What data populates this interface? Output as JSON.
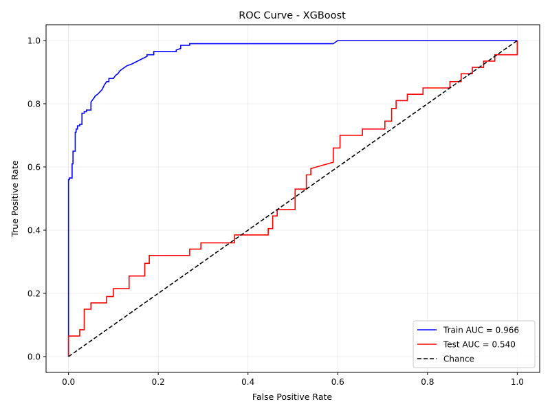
{
  "chart_data": {
    "type": "line",
    "title": "ROC Curve - XGBoost",
    "xlabel": "False Positive Rate",
    "ylabel": "True Positive Rate",
    "xlim": [
      -0.05,
      1.05
    ],
    "ylim": [
      -0.05,
      1.05
    ],
    "xticks": [
      0.0,
      0.2,
      0.4,
      0.6,
      0.8,
      1.0
    ],
    "xtick_labels": [
      "0.0",
      "0.2",
      "0.4",
      "0.6",
      "0.8",
      "1.0"
    ],
    "yticks": [
      0.0,
      0.2,
      0.4,
      0.6,
      0.8,
      1.0
    ],
    "ytick_labels": [
      "0.0",
      "0.2",
      "0.4",
      "0.6",
      "0.8",
      "1.0"
    ],
    "grid": true,
    "legend_position": "lower-right",
    "series": [
      {
        "name": "Train AUC = 0.966",
        "color": "#0000ff",
        "style": "solid",
        "x": [
          0,
          0,
          0.002,
          0.002,
          0.008,
          0.008,
          0.01,
          0.01,
          0.015,
          0.015,
          0.017,
          0.017,
          0.02,
          0.02,
          0.025,
          0.025,
          0.03,
          0.03,
          0.035,
          0.035,
          0.04,
          0.04,
          0.05,
          0.05,
          0.055,
          0.06,
          0.065,
          0.075,
          0.08,
          0.085,
          0.09,
          0.09,
          0.1,
          0.105,
          0.11,
          0.115,
          0.12,
          0.125,
          0.13,
          0.14,
          0.175,
          0.175,
          0.19,
          0.19,
          0.24,
          0.24,
          0.25,
          0.25,
          0.27,
          0.27,
          0.59,
          0.6,
          1.0
        ],
        "y": [
          0,
          0.56,
          0.56,
          0.565,
          0.565,
          0.61,
          0.61,
          0.65,
          0.65,
          0.71,
          0.71,
          0.72,
          0.72,
          0.73,
          0.73,
          0.735,
          0.735,
          0.77,
          0.77,
          0.775,
          0.775,
          0.78,
          0.78,
          0.805,
          0.815,
          0.825,
          0.83,
          0.845,
          0.86,
          0.87,
          0.87,
          0.88,
          0.88,
          0.89,
          0.895,
          0.905,
          0.91,
          0.915,
          0.92,
          0.925,
          0.95,
          0.955,
          0.955,
          0.965,
          0.965,
          0.97,
          0.975,
          0.985,
          0.985,
          0.99,
          0.99,
          1.0,
          1.0
        ]
      },
      {
        "name": "Test AUC = 0.540",
        "color": "#ff0000",
        "style": "solid",
        "x": [
          0,
          0,
          0.025,
          0.025,
          0.035,
          0.035,
          0.05,
          0.05,
          0.085,
          0.085,
          0.1,
          0.1,
          0.135,
          0.135,
          0.17,
          0.17,
          0.18,
          0.18,
          0.27,
          0.27,
          0.295,
          0.295,
          0.37,
          0.37,
          0.445,
          0.445,
          0.455,
          0.455,
          0.465,
          0.465,
          0.505,
          0.505,
          0.53,
          0.53,
          0.54,
          0.54,
          0.59,
          0.59,
          0.605,
          0.605,
          0.655,
          0.655,
          0.705,
          0.705,
          0.72,
          0.72,
          0.73,
          0.73,
          0.755,
          0.755,
          0.79,
          0.79,
          0.85,
          0.85,
          0.875,
          0.875,
          0.9,
          0.9,
          0.925,
          0.925,
          0.95,
          0.95,
          1.0,
          1.0
        ],
        "y": [
          0,
          0.065,
          0.065,
          0.085,
          0.085,
          0.15,
          0.15,
          0.17,
          0.17,
          0.19,
          0.19,
          0.215,
          0.215,
          0.255,
          0.255,
          0.295,
          0.295,
          0.32,
          0.32,
          0.34,
          0.34,
          0.36,
          0.36,
          0.385,
          0.385,
          0.405,
          0.405,
          0.445,
          0.445,
          0.465,
          0.465,
          0.53,
          0.53,
          0.575,
          0.575,
          0.595,
          0.615,
          0.66,
          0.66,
          0.7,
          0.7,
          0.72,
          0.72,
          0.745,
          0.745,
          0.785,
          0.785,
          0.81,
          0.81,
          0.83,
          0.83,
          0.85,
          0.85,
          0.87,
          0.87,
          0.895,
          0.895,
          0.915,
          0.915,
          0.935,
          0.935,
          0.955,
          0.955,
          1.0
        ]
      },
      {
        "name": "Chance",
        "color": "#000000",
        "style": "dashed",
        "x": [
          0,
          1
        ],
        "y": [
          0,
          1
        ]
      }
    ]
  }
}
